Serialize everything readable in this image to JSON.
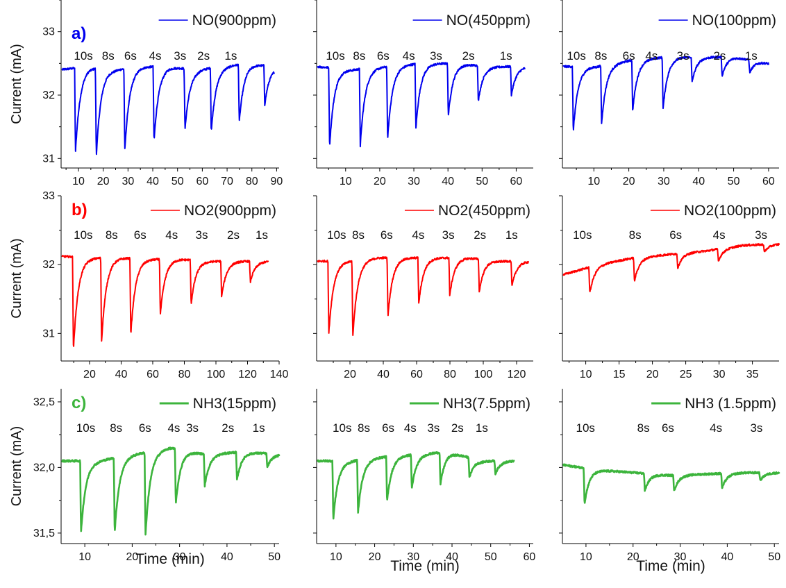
{
  "chart_data": {
    "type": "line",
    "xlabel": "Time (min)",
    "ylabel": "Current (mA)",
    "rows": [
      {
        "letter": "a)",
        "color": "#0000ee",
        "ylim": [
          30.85,
          33.5
        ],
        "yticks": [
          "31",
          "32",
          "33"
        ],
        "yvals": [
          31,
          32,
          33
        ],
        "panels": [
          {
            "legend": "NO(900ppm)",
            "xlim": [
              3,
              91
            ],
            "xticks": [
              10,
              20,
              30,
              40,
              50,
              60,
              70,
              80,
              90
            ],
            "baseline": [
              32.4,
              32.45,
              32.4,
              32.45,
              32.45,
              32.4,
              32.45,
              32.5,
              32.45
            ],
            "pulses": [
              {
                "label": "10s",
                "t": 8.8,
                "min": 31.1
              },
              {
                "label": "8s",
                "t": 17.2,
                "min": 31.05
              },
              {
                "label": "6s",
                "t": 28.7,
                "min": 31.12
              },
              {
                "label": "4s",
                "t": 40.5,
                "min": 31.27
              },
              {
                "label": "3s",
                "t": 53.0,
                "min": 31.45
              },
              {
                "label": "2s",
                "t": 63.6,
                "min": 31.42
              },
              {
                "label": "1s",
                "t": 74.9,
                "min": 31.57
              },
              {
                "label": "",
                "t": 85.2,
                "min": 31.85
              }
            ],
            "x_end": 89,
            "label_x": [
              12,
              22,
              31,
              41,
              51,
              60.5,
              71.5,
              82.5
            ]
          },
          {
            "legend": "NO(450ppm)",
            "xlim": [
              1.5,
              65
            ],
            "xticks": [
              10,
              20,
              30,
              40,
              50,
              60
            ],
            "baseline": [
              32.45,
              32.4,
              32.45,
              32.5,
              32.5,
              32.45,
              32.45
            ],
            "pulses": [
              {
                "label": "10s",
                "t": 5.3,
                "min": 31.18
              },
              {
                "label": "8s",
                "t": 14.3,
                "min": 31.2
              },
              {
                "label": "6s",
                "t": 22.3,
                "min": 31.3
              },
              {
                "label": "4s",
                "t": 30.6,
                "min": 31.48
              },
              {
                "label": "3s",
                "t": 40.1,
                "min": 31.67
              },
              {
                "label": "2s",
                "t": 48.9,
                "min": 31.9
              },
              {
                "label": "1s",
                "t": 58.6,
                "min": 32.0
              }
            ],
            "x_end": 62.5,
            "label_x": [
              7,
              14,
              21,
              28.5,
              36.5,
              46,
              57
            ]
          },
          {
            "legend": "NO(100ppm)",
            "xlim": [
              1,
              63
            ],
            "xticks": [
              10,
              20,
              30,
              40,
              50,
              60
            ],
            "baseline": [
              32.45,
              32.45,
              32.55,
              32.6,
              32.6,
              32.6,
              32.5
            ],
            "pulses": [
              {
                "label": "10s",
                "t": 4.1,
                "min": 31.42
              },
              {
                "label": "8s",
                "t": 12.2,
                "min": 31.55
              },
              {
                "label": "6s",
                "t": 21.1,
                "min": 31.75
              },
              {
                "label": "4s",
                "t": 29.8,
                "min": 31.78
              },
              {
                "label": "3s",
                "t": 38.1,
                "min": 32.2
              },
              {
                "label": "2s",
                "t": 46.7,
                "min": 32.3
              },
              {
                "label": "1s",
                "t": 54.6,
                "min": 32.35
              }
            ],
            "x_end": 60,
            "label_x": [
              5,
              12,
              20,
              26.5,
              35.5,
              46,
              55
            ]
          }
        ]
      },
      {
        "letter": "b)",
        "color": "#ff0000",
        "ylim": [
          30.6,
          33.0
        ],
        "yticks": [
          "31",
          "32",
          "33"
        ],
        "yvals": [
          31,
          32,
          33
        ],
        "panels": [
          {
            "legend": "NO2(900ppm)",
            "xlim": [
              2,
              140
            ],
            "xticks": [
              20,
              40,
              60,
              80,
              100,
              120,
              140
            ],
            "baseline": [
              32.12,
              32.1,
              32.1,
              32.08,
              32.08,
              32.05,
              32.05,
              32.05
            ],
            "pulses": [
              {
                "label": "10s",
                "t": 9.8,
                "min": 30.75
              },
              {
                "label": "8s",
                "t": 27.6,
                "min": 30.88
              },
              {
                "label": "6s",
                "t": 46.1,
                "min": 30.98
              },
              {
                "label": "4s",
                "t": 64.8,
                "min": 31.27
              },
              {
                "label": "3s",
                "t": 84.3,
                "min": 31.42
              },
              {
                "label": "2s",
                "t": 103.6,
                "min": 31.53
              },
              {
                "label": "1s",
                "t": 121.8,
                "min": 31.75
              }
            ],
            "x_end": 133,
            "label_x": [
              16,
              34,
              52,
              72,
              91,
              111,
              129
            ]
          },
          {
            "legend": "NO2(450ppm)",
            "xlim": [
              0,
              130
            ],
            "xticks": [
              20,
              40,
              60,
              80,
              100,
              120
            ],
            "baseline": [
              32.05,
              32.05,
              32.1,
              32.1,
              32.1,
              32.1,
              32.05,
              32.05
            ],
            "pulses": [
              {
                "label": "10s",
                "t": 7.3,
                "min": 31.0
              },
              {
                "label": "8s",
                "t": 21.7,
                "min": 30.95
              },
              {
                "label": "6s",
                "t": 42.8,
                "min": 31.25
              },
              {
                "label": "4s",
                "t": 61.3,
                "min": 31.43
              },
              {
                "label": "3s",
                "t": 79.9,
                "min": 31.55
              },
              {
                "label": "2s",
                "t": 97.6,
                "min": 31.6
              },
              {
                "label": "1s",
                "t": 117.2,
                "min": 31.68
              }
            ],
            "x_end": 127,
            "label_x": [
              12,
              25,
              42,
              61,
              79,
              98,
              117
            ]
          },
          {
            "legend": "NO2(100ppm)",
            "xlim": [
              6.5,
              39
            ],
            "xticks": [
              10,
              15,
              20,
              25,
              30,
              35
            ],
            "baseline": [
              31.85,
              32.0,
              32.1,
              32.15,
              32.2,
              32.28,
              32.3
            ],
            "pulses": [
              {
                "label": "10s",
                "t": 10.6,
                "min": 31.58
              },
              {
                "label": "8s",
                "t": 17.3,
                "min": 31.75
              },
              {
                "label": "6s",
                "t": 23.8,
                "min": 31.95
              },
              {
                "label": "4s",
                "t": 29.9,
                "min": 32.05
              },
              {
                "label": "3s",
                "t": 36.8,
                "min": 32.18
              }
            ],
            "x_end": 39,
            "label_x": [
              9.5,
              17.4,
              23.5,
              30,
              36.3
            ]
          }
        ]
      },
      {
        "letter": "c)",
        "color": "#3cb43c",
        "ylim": [
          31.42,
          32.6
        ],
        "yticks": [
          "31,5",
          "32,0",
          "32,5"
        ],
        "yvals": [
          31.5,
          32.0,
          32.5
        ],
        "panels": [
          {
            "legend": "NH3(15ppm)",
            "xlim": [
              5,
              51
            ],
            "xticks": [
              10,
              20,
              30,
              40,
              50
            ],
            "baseline": [
              32.05,
              32.05,
              32.1,
              32.15,
              32.1,
              32.12,
              32.1
            ],
            "pulses": [
              {
                "label": "10s",
                "t": 9.2,
                "min": 31.5
              },
              {
                "label": "8s",
                "t": 16.3,
                "min": 31.5
              },
              {
                "label": "6s",
                "t": 22.8,
                "min": 31.48
              },
              {
                "label": "4s",
                "t": 29.2,
                "min": 31.72
              },
              {
                "label": "3s",
                "t": 35.3,
                "min": 31.86
              },
              {
                "label": "2s",
                "t": 42.1,
                "min": 31.9
              },
              {
                "label": "1s",
                "t": 48.5,
                "min": 32.0
              }
            ],
            "x_end": 51,
            "label_x": [
              10.2,
              16.6,
              22.7,
              28.8,
              32.7,
              40.2,
              46.7
            ]
          },
          {
            "legend": "NH3(7.5ppm)",
            "xlim": [
              5,
              61
            ],
            "xticks": [
              10,
              20,
              30,
              40,
              50,
              60
            ],
            "baseline": [
              32.05,
              32.05,
              32.08,
              32.1,
              32.12,
              32.05,
              32.05
            ],
            "pulses": [
              {
                "label": "10s",
                "t": 9.3,
                "min": 31.6
              },
              {
                "label": "8s",
                "t": 15.7,
                "min": 31.66
              },
              {
                "label": "6s",
                "t": 23.2,
                "min": 31.74
              },
              {
                "label": "4s",
                "t": 29.6,
                "min": 31.84
              },
              {
                "label": "3s",
                "t": 37.0,
                "min": 31.87
              },
              {
                "label": "2s",
                "t": 44.5,
                "min": 31.92
              },
              {
                "label": "1s",
                "t": 51.2,
                "min": 31.95
              }
            ],
            "x_end": 56,
            "label_x": [
              11.6,
              17.2,
              23.5,
              29.2,
              35.2,
              41.4,
              47.7
            ]
          },
          {
            "legend": "NH3 (1.5ppm)",
            "xlim": [
              5,
              51
            ],
            "xticks": [
              10,
              20,
              30,
              40,
              50
            ],
            "baseline": [
              32.02,
              31.98,
              31.96,
              31.94,
              31.95,
              31.96,
              31.96
            ],
            "pulses": [
              {
                "label": "10s",
                "t": 9.7,
                "min": 31.72
              },
              {
                "label": "8s",
                "t": 22.5,
                "min": 31.82
              },
              {
                "label": "6s",
                "t": 28.7,
                "min": 31.82
              },
              {
                "label": "4s",
                "t": 38.9,
                "min": 31.84
              },
              {
                "label": "3s",
                "t": 47.0,
                "min": 31.9
              }
            ],
            "x_end": 51,
            "label_x": [
              9.9,
              22.2,
              27.4,
              37.6,
              46.2
            ]
          }
        ]
      }
    ]
  }
}
